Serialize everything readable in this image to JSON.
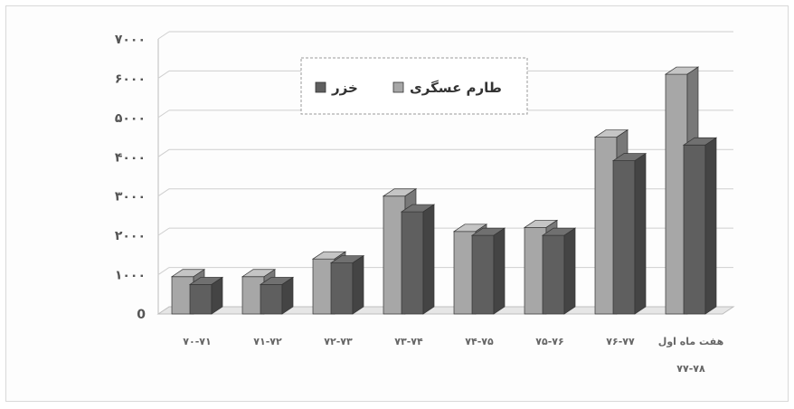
{
  "chart_data": {
    "type": "bar",
    "title": "",
    "xlabel": "",
    "ylabel": "",
    "ylim": [
      0,
      7000
    ],
    "y_ticks": [
      {
        "value": 0,
        "label": "0"
      },
      {
        "value": 1000,
        "label": "۱۰۰۰"
      },
      {
        "value": 2000,
        "label": "۲۰۰۰"
      },
      {
        "value": 3000,
        "label": "۳۰۰۰"
      },
      {
        "value": 4000,
        "label": "۴۰۰۰"
      },
      {
        "value": 5000,
        "label": "۵۰۰۰"
      },
      {
        "value": 6000,
        "label": "۶۰۰۰"
      },
      {
        "value": 7000,
        "label": "۷۰۰۰"
      }
    ],
    "categories": [
      [
        "۷۰-۷۱"
      ],
      [
        "۷۱-۷۲"
      ],
      [
        "۷۲-۷۳"
      ],
      [
        "۷۳-۷۴"
      ],
      [
        "۷۴-۷۵"
      ],
      [
        "۷۵-۷۶"
      ],
      [
        "۷۶-۷۷"
      ],
      [
        "هفت ماه اول",
        "۷۷-۷۸"
      ]
    ],
    "series": [
      {
        "name": "طارم عسگری",
        "color": "#a7a7a7",
        "values": [
          950,
          950,
          1400,
          3000,
          2100,
          2200,
          4500,
          6100
        ]
      },
      {
        "name": "خزر",
        "color": "#5f5f5f",
        "values": [
          750,
          750,
          1300,
          2600,
          2000,
          2000,
          3900,
          4300
        ]
      }
    ],
    "grid": true,
    "legend_position": "top-center"
  }
}
